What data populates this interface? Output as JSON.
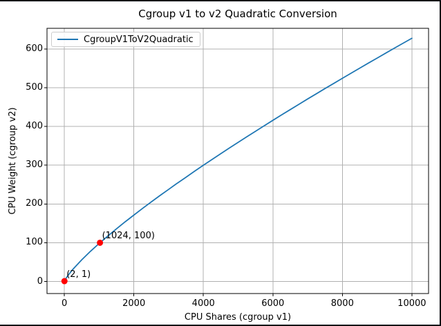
{
  "chart_data": {
    "type": "line",
    "title": "Cgroup v1 to v2 Quadratic Conversion",
    "xlabel": "CPU Shares (cgroup v1)",
    "ylabel": "CPU Weight (cgroup v2)",
    "xlim": [
      -500,
      10480
    ],
    "ylim": [
      -31,
      653
    ],
    "grid": true,
    "legend_position": "upper left",
    "x_ticks": [
      0,
      2000,
      4000,
      6000,
      8000,
      10000
    ],
    "x_tick_labels": [
      "0",
      "2000",
      "4000",
      "6000",
      "8000",
      "10000"
    ],
    "y_ticks": [
      0,
      100,
      200,
      300,
      400,
      500,
      600
    ],
    "y_tick_labels": [
      "0",
      "100",
      "200",
      "300",
      "400",
      "500",
      "600"
    ],
    "series": [
      {
        "name": "CgroupV1ToV2Quadratic",
        "color": "#1f77b4",
        "points": [
          [
            2,
            1
          ],
          [
            25,
            5.0
          ],
          [
            50,
            8.8
          ],
          [
            100,
            15.3
          ],
          [
            250,
            32.1
          ],
          [
            500,
            56.1
          ],
          [
            750,
            77.8
          ],
          [
            1000,
            98.1
          ],
          [
            1024,
            100
          ],
          [
            1250,
            117.4
          ],
          [
            1500,
            135.9
          ],
          [
            1750,
            154.0
          ],
          [
            2000,
            171.4
          ],
          [
            2250,
            188.6
          ],
          [
            2500,
            205.2
          ],
          [
            2750,
            221.7
          ],
          [
            3000,
            237.6
          ],
          [
            3250,
            253.6
          ],
          [
            3500,
            269.0
          ],
          [
            3750,
            284.6
          ],
          [
            4000,
            299.8
          ],
          [
            4250,
            314.8
          ],
          [
            4500,
            329.7
          ],
          [
            4750,
            344.3
          ],
          [
            5000,
            358.9
          ],
          [
            5250,
            373.3
          ],
          [
            5500,
            387.5
          ],
          [
            5750,
            401.7
          ],
          [
            6000,
            415.7
          ],
          [
            6250,
            429.6
          ],
          [
            6500,
            443.4
          ],
          [
            6750,
            457.1
          ],
          [
            7000,
            470.7
          ],
          [
            7250,
            484.1
          ],
          [
            7500,
            497.6
          ],
          [
            7750,
            510.9
          ],
          [
            8000,
            524.1
          ],
          [
            8250,
            537.3
          ],
          [
            8500,
            550.4
          ],
          [
            8750,
            563.4
          ],
          [
            9000,
            576.3
          ],
          [
            9250,
            589.2
          ],
          [
            9500,
            602.0
          ],
          [
            9750,
            614.7
          ],
          [
            10000,
            627.4
          ]
        ]
      }
    ],
    "annotations": [
      {
        "point": [
          2,
          1
        ],
        "label": "(2, 1)"
      },
      {
        "point": [
          1024,
          100
        ],
        "label": "(1024, 100)"
      }
    ],
    "marker_color": "#ff0000",
    "marker_radius": 4.5
  },
  "colors": {
    "grid": "#b0b0b0",
    "spine": "#000000",
    "tick": "#000000",
    "frame": "#0b0e14",
    "legend_border": "#cccccc"
  }
}
